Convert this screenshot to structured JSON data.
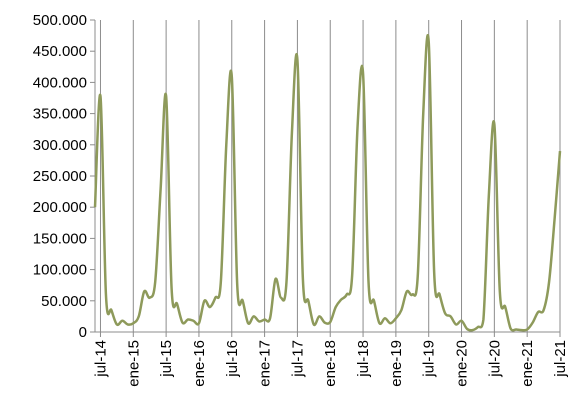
{
  "chart_data": {
    "type": "line",
    "title": "",
    "xlabel": "",
    "ylabel": "",
    "ylim": [
      0,
      500000
    ],
    "y_ticks": [
      0,
      50000,
      100000,
      150000,
      200000,
      250000,
      300000,
      350000,
      400000,
      450000,
      500000
    ],
    "y_tick_labels": [
      "0",
      "50.000",
      "100.000",
      "150.000",
      "200.000",
      "250.000",
      "300.000",
      "350.000",
      "400.000",
      "450.000",
      "500.000"
    ],
    "x_tick_labels": [
      "jul-14",
      "ene-15",
      "jul-15",
      "ene-16",
      "jul-16",
      "ene-17",
      "jul-17",
      "ene-18",
      "jul-18",
      "ene-19",
      "jul-19",
      "ene-20",
      "jul-20",
      "ene-21",
      "jul-21"
    ],
    "vertical_grid": true,
    "horizontal_grid": false,
    "line_color": "#8e9a5b",
    "axis_color": "#8c8c8c",
    "x": [
      "jun-14",
      "jul-14",
      "ago-14",
      "sep-14",
      "oct-14",
      "nov-14",
      "dic-14",
      "ene-15",
      "feb-15",
      "mar-15",
      "abr-15",
      "may-15",
      "jun-15",
      "jul-15",
      "ago-15",
      "sep-15",
      "oct-15",
      "nov-15",
      "dic-15",
      "ene-16",
      "feb-16",
      "mar-16",
      "abr-16",
      "may-16",
      "jun-16",
      "jul-16",
      "ago-16",
      "sep-16",
      "oct-16",
      "nov-16",
      "dic-16",
      "ene-17",
      "feb-17",
      "mar-17",
      "abr-17",
      "may-17",
      "jun-17",
      "jul-17",
      "ago-17",
      "sep-17",
      "oct-17",
      "nov-17",
      "dic-17",
      "ene-18",
      "feb-18",
      "mar-18",
      "abr-18",
      "may-18",
      "jun-18",
      "jul-18",
      "ago-18",
      "sep-18",
      "oct-18",
      "nov-18",
      "dic-18",
      "ene-19",
      "feb-19",
      "mar-19",
      "abr-19",
      "may-19",
      "jun-19",
      "jul-19",
      "ago-19",
      "sep-19",
      "oct-19",
      "nov-19",
      "dic-19",
      "ene-20",
      "feb-20",
      "mar-20",
      "abr-20",
      "may-20",
      "jun-20",
      "jul-20",
      "ago-20",
      "sep-20",
      "oct-20",
      "nov-20",
      "dic-20",
      "ene-21",
      "feb-21",
      "mar-21",
      "abr-21",
      "may-21",
      "jun-21",
      "jul-21"
    ],
    "series": [
      {
        "values": [
          200000,
          378000,
          60000,
          35000,
          12000,
          18000,
          12000,
          14000,
          25000,
          65000,
          55000,
          80000,
          230000,
          378000,
          70000,
          45000,
          15000,
          20000,
          18000,
          14000,
          50000,
          40000,
          55000,
          80000,
          300000,
          410000,
          75000,
          50000,
          14000,
          25000,
          17000,
          20000,
          22000,
          85000,
          55000,
          80000,
          320000,
          436000,
          85000,
          50000,
          12000,
          25000,
          15000,
          16000,
          40000,
          52000,
          60000,
          90000,
          330000,
          414000,
          80000,
          50000,
          14000,
          22000,
          14000,
          22000,
          35000,
          65000,
          60000,
          90000,
          350000,
          465000,
          95000,
          60000,
          30000,
          25000,
          12000,
          18000,
          5000,
          3000,
          8000,
          20000,
          220000,
          333000,
          65000,
          40000,
          5000,
          4000,
          3000,
          4000,
          15000,
          32000,
          35000,
          80000,
          180000,
          290000
        ]
      }
    ]
  }
}
